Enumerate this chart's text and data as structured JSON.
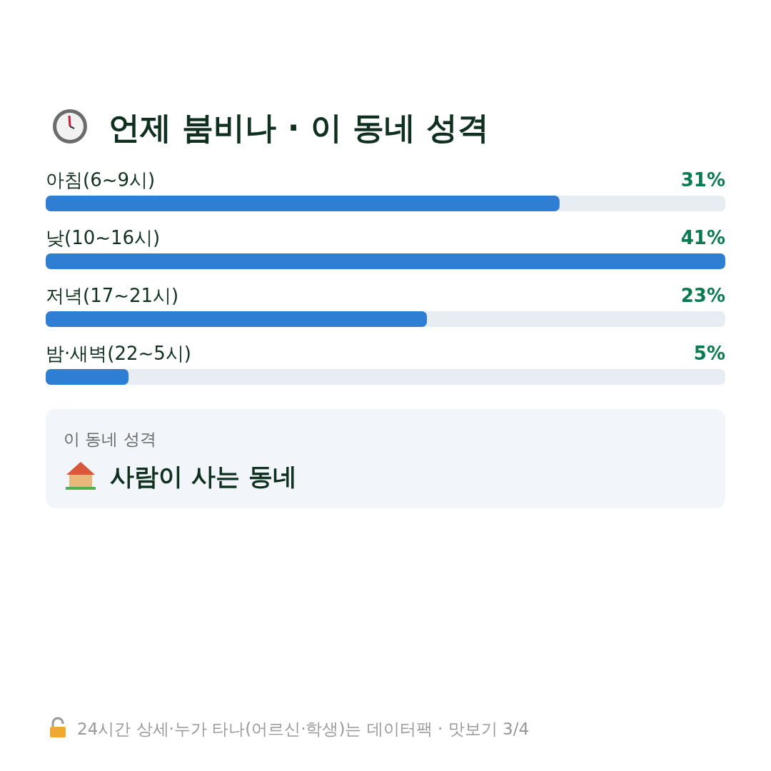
{
  "chart_data": {
    "type": "bar",
    "orientation": "horizontal",
    "title": "언제 붐비나 · 이 동네 성격",
    "categories": [
      "아침(6~9시)",
      "낮(10~16시)",
      "저녁(17~21시)",
      "밤·새벽(22~5시)"
    ],
    "values": [
      31,
      41,
      23,
      5
    ],
    "value_labels": [
      "31%",
      "41%",
      "23%",
      "5%"
    ],
    "color": "#2e7fd4",
    "annotations": [
      "이 동네 성격",
      "사람이 사는 동네",
      "24시간 상세·누가 타나(어르신·학생)는 데이터팩 · 맛보기 3/4"
    ]
  }
}
